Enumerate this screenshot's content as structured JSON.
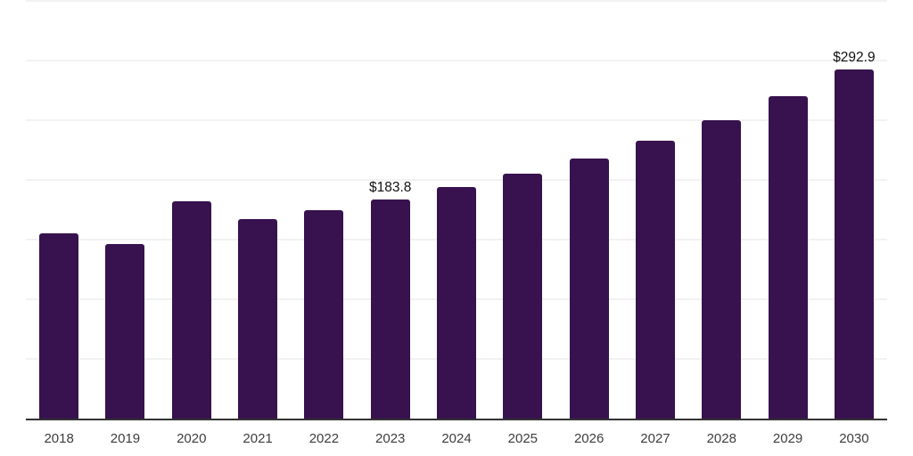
{
  "chart_data": {
    "type": "bar",
    "title": "",
    "xlabel": "",
    "ylabel": "",
    "categories": [
      "2018",
      "2019",
      "2020",
      "2021",
      "2022",
      "2023",
      "2024",
      "2025",
      "2026",
      "2027",
      "2028",
      "2029",
      "2030"
    ],
    "values": [
      155.2,
      146.3,
      181.9,
      167.2,
      174.6,
      183.8,
      194.0,
      205.2,
      217.9,
      232.8,
      250.0,
      270.1,
      292.9
    ],
    "data_labels": [
      "",
      "",
      "",
      "",
      "",
      "$183.8",
      "",
      "",
      "",
      "",
      "",
      "",
      "$292.9"
    ],
    "ylim": [
      0,
      350
    ],
    "gridline_step": 50,
    "grid": true,
    "legend": false,
    "colors": {
      "bar": "#37124e",
      "axis_line": "#333333",
      "gridline": "#f2f2f2",
      "data_label": "#111111",
      "tick_label": "#3d3d3d",
      "background": "#ffffff"
    }
  }
}
